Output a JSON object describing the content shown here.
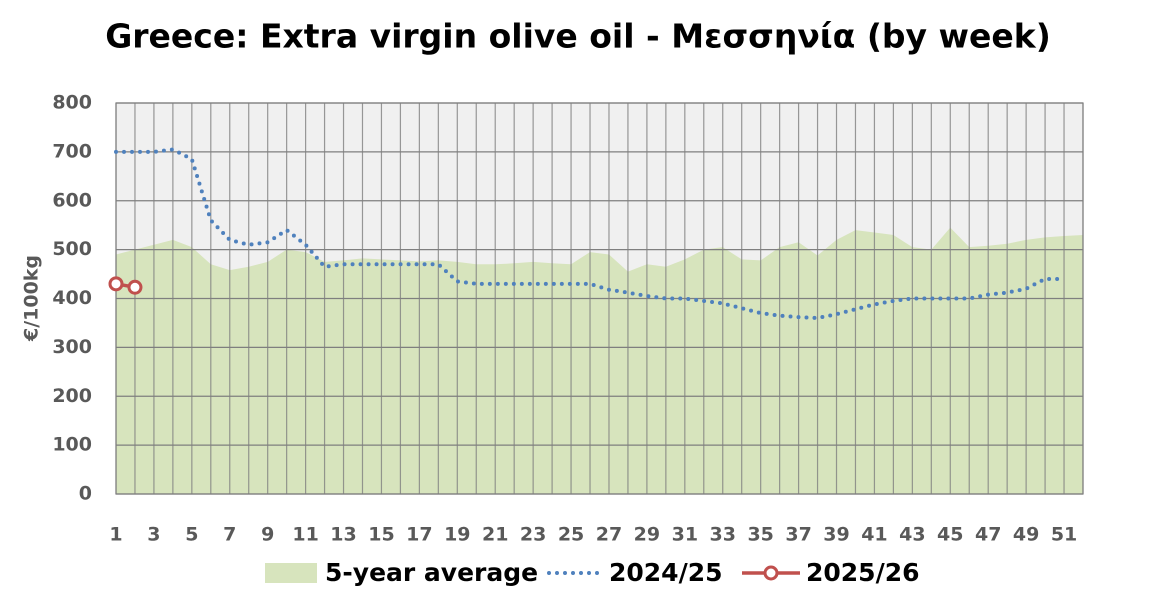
{
  "chart_data": {
    "type": "line",
    "title": "Greece: Extra virgin olive oil - Μεσσηνία (by week)",
    "y_label": "€/100kg",
    "x": [
      1,
      2,
      3,
      4,
      5,
      6,
      7,
      8,
      9,
      10,
      11,
      12,
      13,
      14,
      15,
      16,
      17,
      18,
      19,
      20,
      21,
      22,
      23,
      24,
      25,
      26,
      27,
      28,
      29,
      30,
      31,
      32,
      33,
      34,
      35,
      36,
      37,
      38,
      39,
      40,
      41,
      42,
      43,
      44,
      45,
      46,
      47,
      48,
      49,
      50,
      51,
      52
    ],
    "xlim": [
      1,
      52
    ],
    "xticks": [
      1,
      3,
      5,
      7,
      9,
      11,
      13,
      15,
      17,
      19,
      21,
      23,
      25,
      27,
      29,
      31,
      33,
      35,
      37,
      39,
      41,
      43,
      45,
      47,
      49,
      51
    ],
    "ylim": [
      0,
      800
    ],
    "yticks": [
      0,
      100,
      200,
      300,
      400,
      500,
      600,
      700,
      800
    ],
    "grid": true,
    "legend": "bottom",
    "series": [
      {
        "name": "5-year average",
        "kind": "area",
        "color": "#d7e4bd",
        "values": [
          490,
          500,
          510,
          520,
          505,
          470,
          458,
          465,
          475,
          500,
          495,
          475,
          478,
          482,
          480,
          478,
          476,
          478,
          475,
          470,
          470,
          472,
          475,
          472,
          470,
          495,
          490,
          455,
          470,
          465,
          480,
          500,
          505,
          480,
          478,
          505,
          515,
          488,
          520,
          540,
          535,
          530,
          505,
          500,
          545,
          505,
          508,
          512,
          520,
          525,
          528,
          530
        ]
      },
      {
        "name": "2024/25",
        "kind": "dotted",
        "color": "#4f81bd",
        "values": [
          700,
          700,
          700,
          705,
          685,
          560,
          520,
          510,
          515,
          540,
          510,
          465,
          470,
          470,
          470,
          470,
          470,
          470,
          435,
          430,
          430,
          430,
          430,
          430,
          430,
          430,
          418,
          412,
          405,
          400,
          400,
          395,
          390,
          380,
          370,
          365,
          362,
          360,
          368,
          378,
          388,
          395,
          400,
          400,
          400,
          400,
          408,
          412,
          420,
          440,
          440,
          null
        ]
      },
      {
        "name": "2025/26",
        "kind": "marker",
        "color": "#c0504d",
        "values": [
          430,
          423,
          null,
          null,
          null,
          null,
          null,
          null,
          null,
          null,
          null,
          null,
          null,
          null,
          null,
          null,
          null,
          null,
          null,
          null,
          null,
          null,
          null,
          null,
          null,
          null,
          null,
          null,
          null,
          null,
          null,
          null,
          null,
          null,
          null,
          null,
          null,
          null,
          null,
          null,
          null,
          null,
          null,
          null,
          null,
          null,
          null,
          null,
          null,
          null,
          null,
          null
        ]
      }
    ]
  }
}
